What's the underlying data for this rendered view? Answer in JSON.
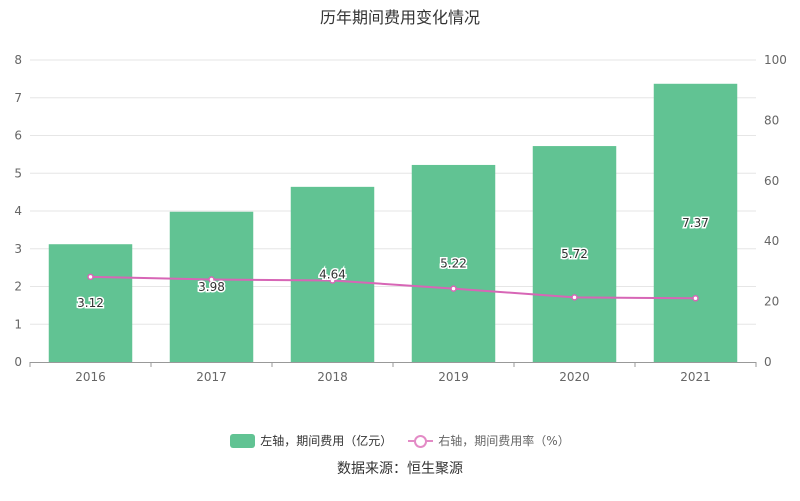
{
  "title": "历年期间费用变化情况",
  "source": "数据来源：恒生聚源",
  "colors": {
    "bar": "#61c393",
    "line": "#d766b6",
    "line_marker": "#e38bc6",
    "grid": "#e6e6e6"
  },
  "legend": {
    "bar": "左轴，期间费用（亿元）",
    "line": "右轴，期间费用率（%）"
  },
  "chart_data": {
    "type": "bar",
    "categories": [
      "2016",
      "2017",
      "2018",
      "2019",
      "2020",
      "2021"
    ],
    "series": [
      {
        "name": "左轴，期间费用（亿元）",
        "type": "bar",
        "axis": "left",
        "values": [
          3.12,
          3.98,
          4.64,
          5.22,
          5.72,
          7.37
        ],
        "labels": [
          "3.12",
          "3.98",
          "4.64",
          "5.22",
          "5.72",
          "7.37"
        ]
      },
      {
        "name": "右轴，期间费用率（%）",
        "type": "line",
        "axis": "right",
        "values": [
          28.2,
          27.3,
          27.0,
          24.3,
          21.4,
          21.1
        ]
      }
    ],
    "y_left": {
      "min": 0,
      "max": 8,
      "ticks": [
        "0",
        "1",
        "2",
        "3",
        "4",
        "5",
        "6",
        "7",
        "8"
      ]
    },
    "y_right": {
      "min": 0,
      "max": 100,
      "ticks": [
        "0",
        "20",
        "40",
        "60",
        "80",
        "100"
      ]
    },
    "grid": true,
    "legend_position": "bottom"
  }
}
